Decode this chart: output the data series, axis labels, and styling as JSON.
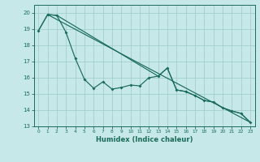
{
  "xlabel": "Humidex (Indice chaleur)",
  "bg_color": "#c6e8e8",
  "grid_color": "#9dcaca",
  "line_color": "#1a6b5a",
  "xlim": [
    -0.5,
    23.5
  ],
  "ylim": [
    13.0,
    20.5
  ],
  "yticks": [
    13,
    14,
    15,
    16,
    17,
    18,
    19,
    20
  ],
  "xticks": [
    0,
    1,
    2,
    3,
    4,
    5,
    6,
    7,
    8,
    9,
    10,
    11,
    12,
    13,
    14,
    15,
    16,
    17,
    18,
    19,
    20,
    21,
    22,
    23
  ],
  "line1_x": [
    0,
    1,
    2,
    3,
    4,
    5,
    6,
    7,
    8,
    9,
    10,
    11,
    12,
    13,
    14,
    15,
    16,
    17,
    18,
    19,
    20,
    21,
    22,
    23
  ],
  "line1_y": [
    18.9,
    19.9,
    19.85,
    18.8,
    17.2,
    15.9,
    15.35,
    15.75,
    15.3,
    15.4,
    15.55,
    15.5,
    16.0,
    16.1,
    16.6,
    15.25,
    15.15,
    14.9,
    14.6,
    14.5,
    14.15,
    13.95,
    13.8,
    13.25
  ],
  "line2_x": [
    1,
    23
  ],
  "line2_y": [
    19.9,
    13.25
  ],
  "line3_x": [
    0,
    1,
    2,
    13,
    14,
    15,
    16,
    17,
    18,
    19,
    20,
    21,
    22,
    23
  ],
  "line3_y": [
    18.9,
    19.9,
    19.85,
    16.1,
    16.6,
    15.25,
    15.15,
    14.9,
    14.6,
    14.5,
    14.15,
    13.95,
    13.8,
    13.25
  ]
}
